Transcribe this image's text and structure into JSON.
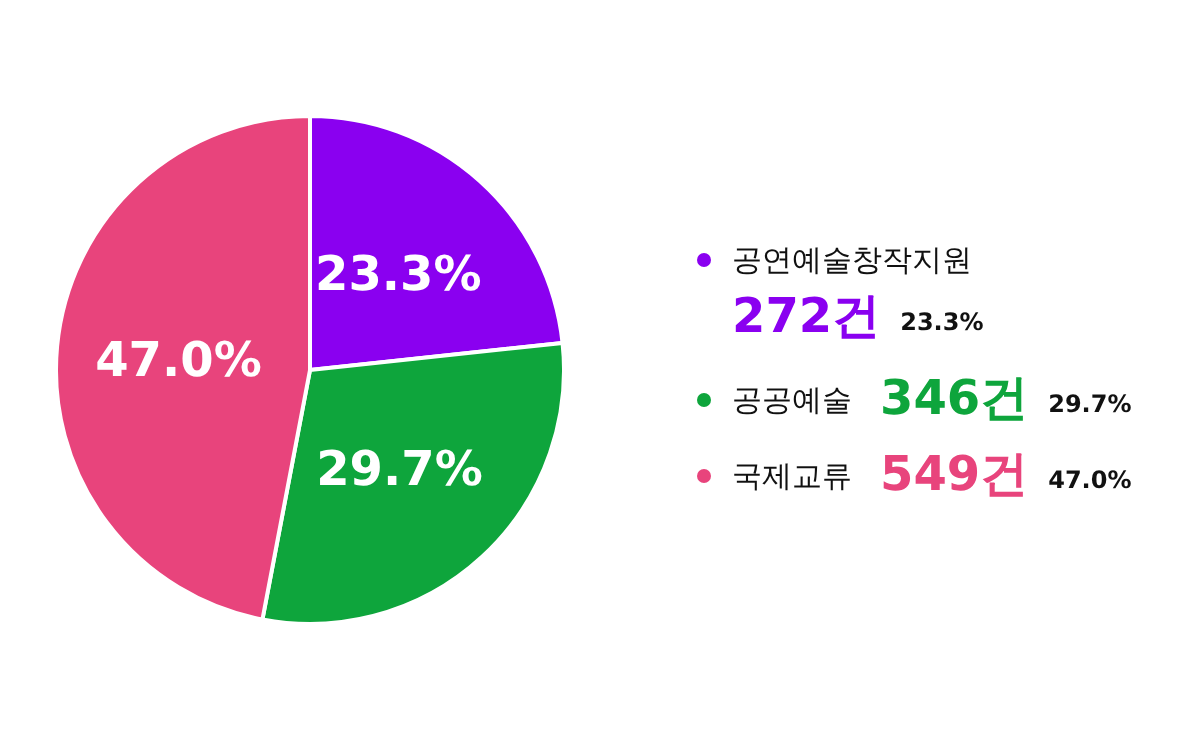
{
  "chart_data": {
    "type": "pie",
    "categories": [
      "공연예술창작지원",
      "공공예술",
      "국제교류"
    ],
    "values": [
      23.3,
      29.7,
      47.0
    ],
    "value_labels": [
      "23.3%",
      "29.7%",
      "47.0%"
    ],
    "colors": [
      "#8a00f0",
      "#0ea53c",
      "#e8447c"
    ],
    "annotations": [
      "272건",
      "346건",
      "549건"
    ],
    "legend": "right"
  }
}
